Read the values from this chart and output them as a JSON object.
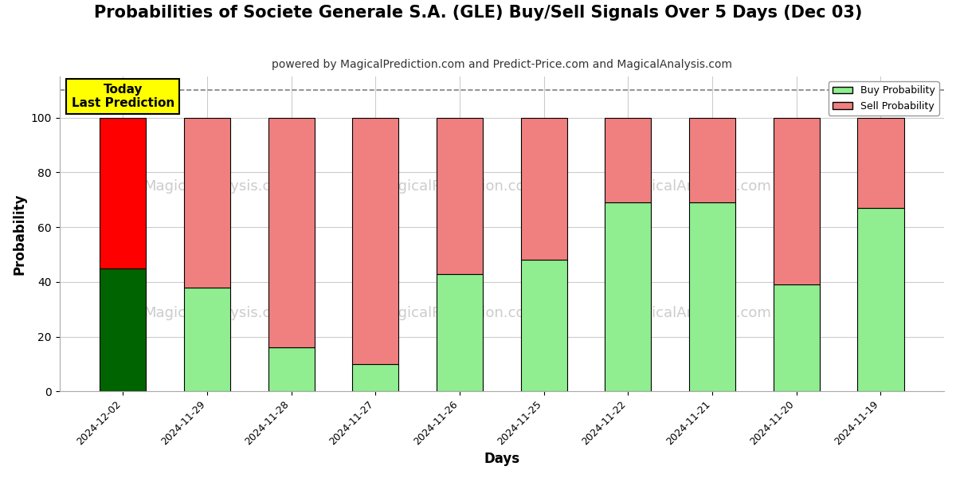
{
  "title": "Probabilities of Societe Generale S.A. (GLE) Buy/Sell Signals Over 5 Days (Dec 03)",
  "subtitle": "powered by MagicalPrediction.com and Predict-Price.com and MagicalAnalysis.com",
  "xlabel": "Days",
  "ylabel": "Probability",
  "categories": [
    "2024-12-02",
    "2024-11-29",
    "2024-11-28",
    "2024-11-27",
    "2024-11-26",
    "2024-11-25",
    "2024-11-22",
    "2024-11-21",
    "2024-11-20",
    "2024-11-19"
  ],
  "buy_values": [
    45,
    38,
    16,
    10,
    43,
    48,
    69,
    69,
    39,
    67
  ],
  "sell_values": [
    55,
    62,
    84,
    90,
    57,
    52,
    31,
    31,
    61,
    33
  ],
  "today_index": 0,
  "buy_color_today": "#006400",
  "sell_color_today": "#ff0000",
  "buy_color_normal": "#90ee90",
  "sell_color_normal": "#f08080",
  "bar_edgecolor": "#000000",
  "ylim": [
    0,
    115
  ],
  "yticks": [
    0,
    20,
    40,
    60,
    80,
    100
  ],
  "dashed_line_y": 110,
  "today_box_text": "Today\nLast Prediction",
  "today_box_facecolor": "#ffff00",
  "today_box_edgecolor": "#000000",
  "legend_buy_label": "Buy Probability",
  "legend_sell_label": "Sell Probability",
  "watermark_color": "#cccccc",
  "background_color": "#ffffff",
  "grid_color": "#cccccc",
  "title_fontsize": 15,
  "subtitle_fontsize": 10,
  "axis_label_fontsize": 12,
  "bar_width": 0.55
}
